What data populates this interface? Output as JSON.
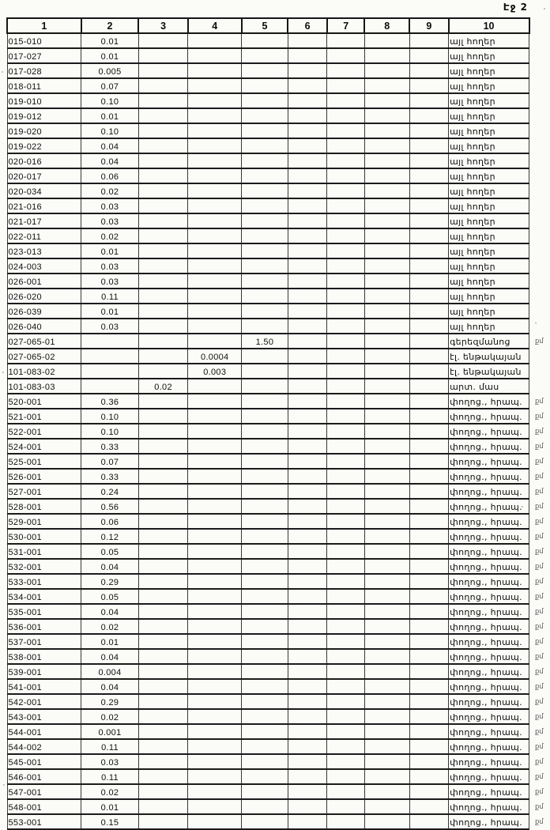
{
  "page_label": "Էջ 2",
  "table": {
    "columns": [
      "1",
      "2",
      "3",
      "4",
      "5",
      "6",
      "7",
      "8",
      "9",
      "10"
    ],
    "rows": [
      {
        "cells": [
          "015-010",
          "0.01",
          "",
          "",
          "",
          "",
          "",
          "",
          "",
          "այլ հողեր"
        ],
        "mark": ""
      },
      {
        "cells": [
          "017-027",
          "0.01",
          "",
          "",
          "",
          "",
          "",
          "",
          "",
          "այլ հողեր"
        ],
        "mark": ""
      },
      {
        "cells": [
          "017-028",
          "0.005",
          "",
          "",
          "",
          "",
          "",
          "",
          "",
          "այլ հողեր"
        ],
        "mark": ""
      },
      {
        "cells": [
          "018-011",
          "0.07",
          "",
          "",
          "",
          "",
          "",
          "",
          "",
          "այլ հողեր"
        ],
        "mark": ""
      },
      {
        "cells": [
          "019-010",
          "0.10",
          "",
          "",
          "",
          "",
          "",
          "",
          "",
          "այլ հողեր"
        ],
        "mark": ""
      },
      {
        "cells": [
          "019-012",
          "0.01",
          "",
          "",
          "",
          "",
          "",
          "",
          "",
          "այլ հողեր"
        ],
        "mark": ""
      },
      {
        "cells": [
          "019-020",
          "0.10",
          "",
          "",
          "",
          "",
          "",
          "",
          "",
          "այլ հողեր"
        ],
        "mark": ""
      },
      {
        "cells": [
          "019-022",
          "0.04",
          "",
          "",
          "",
          "",
          "",
          "",
          "",
          "այլ հողեր"
        ],
        "mark": ""
      },
      {
        "cells": [
          "020-016",
          "0.04",
          "",
          "",
          "",
          "",
          "",
          "",
          "",
          "այլ հողեր"
        ],
        "mark": ""
      },
      {
        "cells": [
          "020-017",
          "0.06",
          "",
          "",
          "",
          "",
          "",
          "",
          "",
          "այլ հողեր"
        ],
        "mark": ""
      },
      {
        "cells": [
          "020-034",
          "0.02",
          "",
          "",
          "",
          "",
          "",
          "",
          "",
          "այլ հողեր"
        ],
        "mark": ""
      },
      {
        "cells": [
          "021-016",
          "0.03",
          "",
          "",
          "",
          "",
          "",
          "",
          "",
          "այլ հողեր"
        ],
        "mark": ""
      },
      {
        "cells": [
          "021-017",
          "0.03",
          "",
          "",
          "",
          "",
          "",
          "",
          "",
          "այլ հողեր"
        ],
        "mark": ""
      },
      {
        "cells": [
          "022-011",
          "0.02",
          "",
          "",
          "",
          "",
          "",
          "",
          "",
          "այլ հողեր"
        ],
        "mark": ""
      },
      {
        "cells": [
          "023-013",
          "0.01",
          "",
          "",
          "",
          "",
          "",
          "",
          "",
          "այլ հողեր"
        ],
        "mark": ""
      },
      {
        "cells": [
          "024-003",
          "0.03",
          "",
          "",
          "",
          "",
          "",
          "",
          "",
          "այլ հողեր"
        ],
        "mark": ""
      },
      {
        "cells": [
          "026-001",
          "0.03",
          "",
          "",
          "",
          "",
          "",
          "",
          "",
          "այլ հողեր"
        ],
        "mark": ""
      },
      {
        "cells": [
          "026-020",
          "0.11",
          "",
          "",
          "",
          "",
          "",
          "",
          "",
          "այլ հողեր"
        ],
        "mark": ""
      },
      {
        "cells": [
          "026-039",
          "0.01",
          "",
          "",
          "",
          "",
          "",
          "",
          "",
          "այլ հողեր"
        ],
        "mark": ""
      },
      {
        "cells": [
          "026-040",
          "0.03",
          "",
          "",
          "",
          "",
          "",
          "",
          "",
          "այլ հողեր"
        ],
        "mark": "՝"
      },
      {
        "cells": [
          "027-065-01",
          "",
          "",
          "",
          "1.50",
          "",
          "",
          "",
          "",
          "գերեզմանոց"
        ],
        "mark": "քմ"
      },
      {
        "cells": [
          "027-065-02",
          "",
          "",
          "0.0004",
          "",
          "",
          "",
          "",
          "",
          "էլ. ենթակայան"
        ],
        "mark": ""
      },
      {
        "cells": [
          "101-083-02",
          "",
          "",
          "0.003",
          "",
          "",
          "",
          "",
          "",
          "էլ. ենթակայան"
        ],
        "mark": ""
      },
      {
        "cells": [
          "101-083-03",
          "",
          "0.02",
          "",
          "",
          "",
          "",
          "",
          "",
          "արտ. մաս"
        ],
        "mark": ""
      },
      {
        "cells": [
          "520-001",
          "0.36",
          "",
          "",
          "",
          "",
          "",
          "",
          "",
          "փողոց., հրապ."
        ],
        "mark": "քմ"
      },
      {
        "cells": [
          "521-001",
          "0.10",
          "",
          "",
          "",
          "",
          "",
          "",
          "",
          "փողոց., հրապ."
        ],
        "mark": "քմ"
      },
      {
        "cells": [
          "522-001",
          "0.10",
          "",
          "",
          "",
          "",
          "",
          "",
          "",
          "փողոց., հրապ."
        ],
        "mark": "քմ"
      },
      {
        "cells": [
          "524-001",
          "0.33",
          "",
          "",
          "",
          "",
          "",
          "",
          "",
          "փողոց., հրապ."
        ],
        "mark": "քմ"
      },
      {
        "cells": [
          "525-001",
          "0.07",
          "",
          "",
          "",
          "",
          "",
          "",
          "",
          "փողոց., հրապ."
        ],
        "mark": "քմ"
      },
      {
        "cells": [
          "526-001",
          "0.33",
          "",
          "",
          "",
          "",
          "",
          "",
          "",
          "փողոց., հրապ."
        ],
        "mark": "քմ"
      },
      {
        "cells": [
          "527-001",
          "0.24",
          "",
          "",
          "",
          "",
          "",
          "",
          "",
          "փողոց., հրապ."
        ],
        "mark": "քմ"
      },
      {
        "cells": [
          "528-001",
          "0.56",
          "",
          "",
          "",
          "",
          "",
          "",
          "",
          "փողոց., հրապ."
        ],
        "mark": "քմ"
      },
      {
        "cells": [
          "529-001",
          "0.06",
          "",
          "",
          "",
          "",
          "",
          "",
          "",
          "փողոց., հրապ."
        ],
        "mark": "քմ"
      },
      {
        "cells": [
          "530-001",
          "0.12",
          "",
          "",
          "",
          "",
          "",
          "",
          "",
          "փողոց., հրապ."
        ],
        "mark": "քմ"
      },
      {
        "cells": [
          "531-001",
          "0.05",
          "",
          "",
          "",
          "",
          "",
          "",
          "",
          "փողոց., հրապ."
        ],
        "mark": "քմ"
      },
      {
        "cells": [
          "532-001",
          "0.04",
          "",
          "",
          "",
          "",
          "",
          "",
          "",
          "փողոց., հրապ."
        ],
        "mark": "քմ"
      },
      {
        "cells": [
          "533-001",
          "0.29",
          "",
          "",
          "",
          "",
          "",
          "",
          "",
          "փողոց., հրապ."
        ],
        "mark": "քմ"
      },
      {
        "cells": [
          "534-001",
          "0.05",
          "",
          "",
          "",
          "",
          "",
          "",
          "",
          "փողոց., հրապ."
        ],
        "mark": "քմ"
      },
      {
        "cells": [
          "535-001",
          "0.04",
          "",
          "",
          "",
          "",
          "",
          "",
          "",
          "փողոց., հրապ."
        ],
        "mark": "քմ"
      },
      {
        "cells": [
          "536-001",
          "0.02",
          "",
          "",
          "",
          "",
          "",
          "",
          "",
          "փողոց., հրապ."
        ],
        "mark": "քմ"
      },
      {
        "cells": [
          "537-001",
          "0.01",
          "",
          "",
          "",
          "",
          "",
          "",
          "",
          "փողոց., հրապ."
        ],
        "mark": "քմ"
      },
      {
        "cells": [
          "538-001",
          "0.04",
          "",
          "",
          "",
          "",
          "",
          "",
          "",
          "փողոց., հրապ."
        ],
        "mark": "քմ"
      },
      {
        "cells": [
          "539-001",
          "0.004",
          "",
          "",
          "",
          "",
          "",
          "",
          "",
          "փողոց., հրապ."
        ],
        "mark": "քմ"
      },
      {
        "cells": [
          "541-001",
          "0.04",
          "",
          "",
          "",
          "",
          "",
          "",
          "",
          "փողոց., հրապ."
        ],
        "mark": "քմ"
      },
      {
        "cells": [
          "542-001",
          "0.29",
          "",
          "",
          "",
          "",
          "",
          "",
          "",
          "փողոց., հրապ."
        ],
        "mark": "քմ"
      },
      {
        "cells": [
          "543-001",
          "0.02",
          "",
          "",
          "",
          "",
          "",
          "",
          "",
          "փողոց., հրապ."
        ],
        "mark": "քմ"
      },
      {
        "cells": [
          "544-001",
          "0.001",
          "",
          "",
          "",
          "",
          "",
          "",
          "",
          "փողոց., հրապ."
        ],
        "mark": "քմ"
      },
      {
        "cells": [
          "544-002",
          "0.11",
          "",
          "",
          "",
          "",
          "",
          "",
          "",
          "փողոց., հրապ."
        ],
        "mark": "քմ"
      },
      {
        "cells": [
          "545-001",
          "0.03",
          "",
          "",
          "",
          "",
          "",
          "",
          "",
          "փողոց., հրապ."
        ],
        "mark": "քմ"
      },
      {
        "cells": [
          "546-001",
          "0.11",
          "",
          "",
          "",
          "",
          "",
          "",
          "",
          "փողոց., հրապ."
        ],
        "mark": "քմ"
      },
      {
        "cells": [
          "547-001",
          "0.02",
          "",
          "",
          "",
          "",
          "",
          "",
          "",
          "փողոց., հրապ."
        ],
        "mark": "քմ"
      },
      {
        "cells": [
          "548-001",
          "0.01",
          "",
          "",
          "",
          "",
          "",
          "",
          "",
          "փողոց., հրապ."
        ],
        "mark": "քմ"
      },
      {
        "cells": [
          "553-001",
          "0.15",
          "",
          "",
          "",
          "",
          "",
          "",
          "",
          "փողոց., հրապ."
        ],
        "mark": "քմ"
      }
    ]
  }
}
